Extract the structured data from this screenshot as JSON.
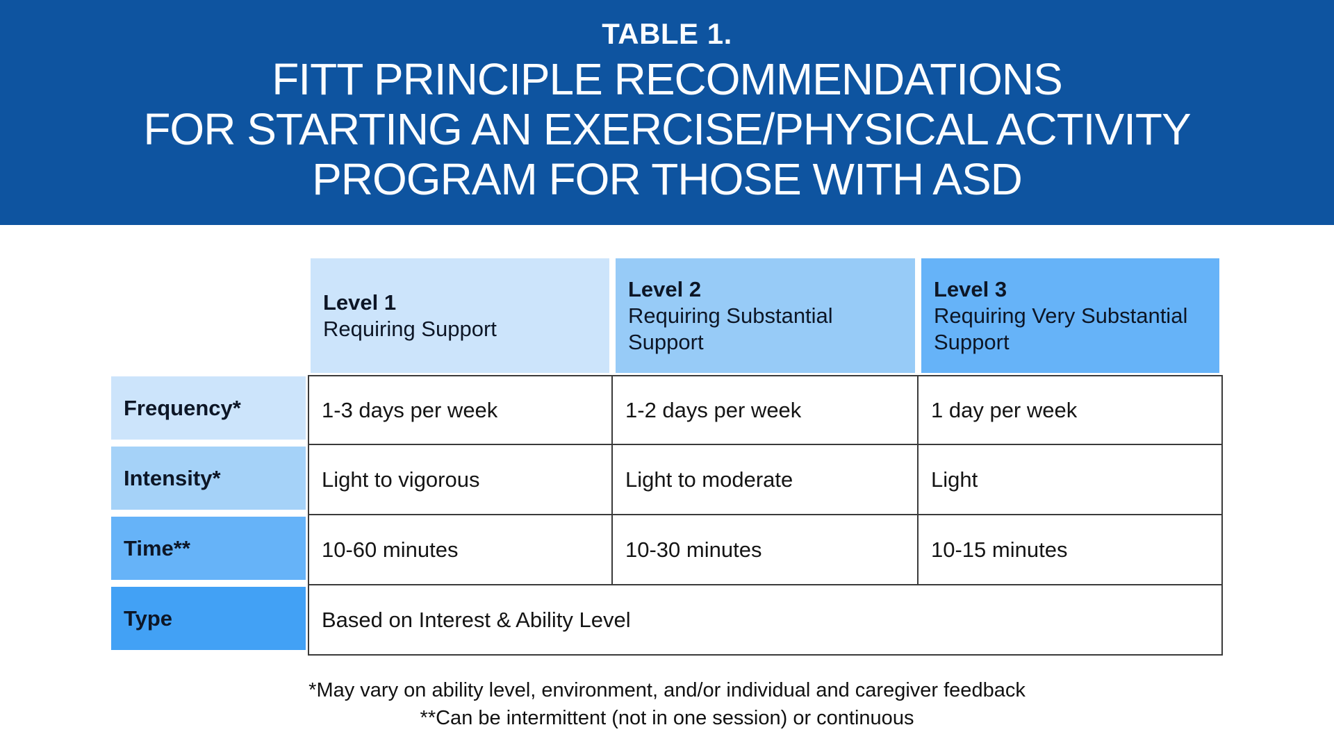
{
  "banner": {
    "label": "TABLE 1.",
    "title_lines": [
      "FITT PRINCIPLE RECOMMENDATIONS",
      "FOR STARTING AN EXERCISE/PHYSICAL ACTIVITY",
      "PROGRAM FOR THOSE WITH ASD"
    ],
    "bg": "#0e54a0",
    "text_color": "#fbfdff"
  },
  "table": {
    "columns": [
      {
        "label": "Level 1",
        "sublabel": "Requiring Support",
        "bg": "#cce4fb"
      },
      {
        "label": "Level 2",
        "sublabel": "Requiring Substantial Support",
        "bg": "#97cbf7"
      },
      {
        "label": "Level 3",
        "sublabel": "Requiring Very Substantial Support",
        "bg": "#66b3f8"
      }
    ],
    "rows": [
      {
        "header": "Frequency*",
        "bg": "#cce4fb",
        "cells": [
          "1-3 days per week",
          "1-2 days per week",
          "1 day per week"
        ]
      },
      {
        "header": "Intensity*",
        "bg": "#a5d2f8",
        "cells": [
          "Light to vigorous",
          "Light to moderate",
          "Light"
        ]
      },
      {
        "header": "Time**",
        "bg": "#66b3f8",
        "cells": [
          "10-60 minutes",
          "10-30 minutes",
          "10-15 minutes"
        ]
      },
      {
        "header": "Type",
        "bg": "#42a1f5",
        "span_cell": "Based on Interest & Ability Level"
      }
    ],
    "border_color": "#3a3a3a"
  },
  "footnotes": [
    "*May vary on ability level, environment, and/or individual and caregiver feedback",
    "**Can be intermittent (not in one session) or continuous"
  ]
}
